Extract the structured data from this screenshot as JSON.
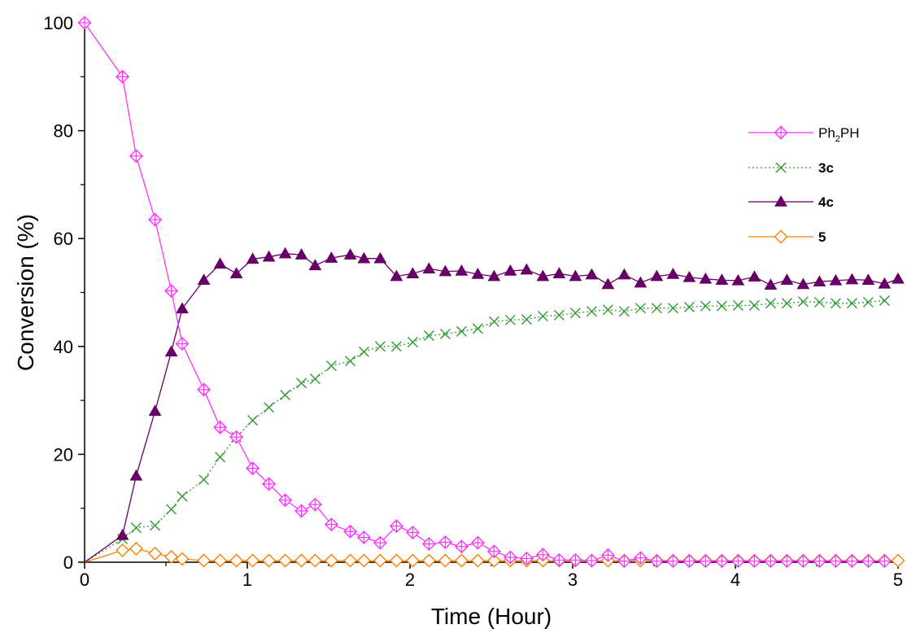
{
  "chart_data": {
    "type": "line",
    "xlabel": "Time (Hour)",
    "ylabel": "Conversion (%)",
    "xlim": [
      0,
      5
    ],
    "ylim": [
      0,
      100
    ],
    "x_ticks": [
      "0",
      "1",
      "2",
      "3",
      "4",
      "5"
    ],
    "y_ticks": [
      "0",
      "20",
      "40",
      "60",
      "80",
      "100"
    ],
    "grid": false,
    "legend_position": "top-right",
    "series": [
      {
        "name": "Ph2PH",
        "name_main": "Ph",
        "name_sub": "2",
        "name_rest": "PH",
        "name_bold": false,
        "color": "#ff33ff",
        "marker": "diamond-cross",
        "line": "solid",
        "x": [
          0,
          0.233,
          0.317,
          0.433,
          0.533,
          0.6,
          0.733,
          0.833,
          0.933,
          1.033,
          1.133,
          1.233,
          1.333,
          1.417,
          1.517,
          1.633,
          1.717,
          1.817,
          1.917,
          2.017,
          2.117,
          2.217,
          2.317,
          2.417,
          2.517,
          2.617,
          2.717,
          2.817,
          2.917,
          3.017,
          3.117,
          3.217,
          3.317,
          3.417,
          3.517,
          3.617,
          3.717,
          3.817,
          3.917,
          4.017,
          4.117,
          4.217,
          4.317,
          4.417,
          4.517,
          4.617,
          4.717,
          4.817,
          4.917
        ],
        "y": [
          100,
          90,
          75.3,
          63.5,
          50.3,
          40.5,
          32,
          25,
          23.2,
          17.4,
          14.5,
          11.5,
          9.5,
          10.7,
          7,
          5.7,
          4.6,
          3.6,
          6.7,
          5.5,
          3.4,
          3.7,
          2.9,
          3.6,
          2,
          0.9,
          0.7,
          1.4,
          0.4,
          0.4,
          0.3,
          1.3,
          0.2,
          0.8,
          0.2,
          0.2,
          0.2,
          0.2,
          0.2,
          0.2,
          0.2,
          0.2,
          0.2,
          0.2,
          0.2,
          0.2,
          0.2,
          0.2,
          0.2
        ]
      },
      {
        "name": "3c",
        "name_bold": true,
        "color": "#339933",
        "marker": "x",
        "line": "dotted",
        "x": [
          0,
          0.233,
          0.317,
          0.433,
          0.533,
          0.6,
          0.733,
          0.833,
          0.933,
          1.033,
          1.133,
          1.233,
          1.333,
          1.417,
          1.517,
          1.633,
          1.717,
          1.817,
          1.917,
          2.017,
          2.117,
          2.217,
          2.317,
          2.417,
          2.517,
          2.617,
          2.717,
          2.817,
          2.917,
          3.017,
          3.117,
          3.217,
          3.317,
          3.417,
          3.517,
          3.617,
          3.717,
          3.817,
          3.917,
          4.017,
          4.117,
          4.217,
          4.317,
          4.417,
          4.517,
          4.617,
          4.717,
          4.817,
          4.917
        ],
        "y": [
          0,
          4.3,
          6.4,
          6.8,
          9.8,
          12.2,
          15.3,
          19.5,
          23.2,
          26.3,
          28.7,
          31,
          33.2,
          34,
          36.4,
          37.3,
          39,
          40,
          40,
          40.8,
          42,
          42.3,
          42.8,
          43.3,
          44.6,
          44.9,
          45,
          45.6,
          45.8,
          46.2,
          46.5,
          46.8,
          46.5,
          47.1,
          47.1,
          47.1,
          47.3,
          47.5,
          47.5,
          47.6,
          47.6,
          48,
          48,
          48.3,
          48.2,
          48,
          48,
          48.2,
          48.5
        ]
      },
      {
        "name": "4c",
        "name_bold": true,
        "color": "#660066",
        "marker": "triangle",
        "line": "solid",
        "x": [
          0,
          0.233,
          0.317,
          0.433,
          0.533,
          0.6,
          0.733,
          0.833,
          0.933,
          1.033,
          1.133,
          1.233,
          1.333,
          1.417,
          1.517,
          1.633,
          1.717,
          1.817,
          1.917,
          2.017,
          2.117,
          2.217,
          2.317,
          2.417,
          2.517,
          2.617,
          2.717,
          2.817,
          2.917,
          3.017,
          3.117,
          3.217,
          3.317,
          3.417,
          3.517,
          3.617,
          3.717,
          3.817,
          3.917,
          4.017,
          4.117,
          4.217,
          4.317,
          4.417,
          4.517,
          4.617,
          4.717,
          4.817,
          4.917,
          5.0
        ],
        "y": [
          0,
          5,
          16,
          28,
          39,
          47,
          52.3,
          55.3,
          53.5,
          56.2,
          56.6,
          57.2,
          57,
          55,
          56.4,
          57,
          56.3,
          56.3,
          53,
          53.5,
          54.4,
          53.9,
          54,
          53.4,
          53,
          54,
          54.2,
          53,
          53.5,
          53,
          53.3,
          51.5,
          53.3,
          51.8,
          53,
          53.4,
          52.8,
          52.5,
          52.3,
          52.2,
          52.9,
          51.4,
          52.3,
          51.5,
          52,
          52.2,
          52.4,
          52.3,
          51.6,
          52.5
        ]
      },
      {
        "name": "5",
        "name_bold": true,
        "color": "#ff8000",
        "marker": "diamond",
        "line": "solid",
        "x": [
          0,
          0.233,
          0.317,
          0.433,
          0.533,
          0.6,
          0.733,
          0.833,
          0.933,
          1.033,
          1.133,
          1.233,
          1.333,
          1.417,
          1.517,
          1.633,
          1.717,
          1.817,
          1.917,
          2.017,
          2.117,
          2.217,
          2.317,
          2.417,
          2.517,
          2.617,
          2.717,
          2.817,
          2.917,
          3.017,
          3.117,
          3.217,
          3.317,
          3.417,
          3.517,
          3.617,
          3.717,
          3.817,
          3.917,
          4.017,
          4.117,
          4.217,
          4.317,
          4.417,
          4.517,
          4.617,
          4.717,
          4.817,
          4.917,
          5.0
        ],
        "y": [
          0,
          2.2,
          2.5,
          1.6,
          1,
          0.6,
          0.3,
          0.3,
          0.3,
          0.3,
          0.3,
          0.3,
          0.3,
          0.3,
          0.3,
          0.3,
          0.3,
          0.3,
          0.3,
          0.3,
          0.3,
          0.3,
          0.3,
          0.3,
          0.3,
          0.3,
          0.3,
          0.3,
          0.3,
          0.3,
          0.3,
          0.3,
          0.3,
          0.3,
          0.3,
          0.3,
          0.3,
          0.3,
          0.3,
          0.3,
          0.3,
          0.3,
          0.3,
          0.3,
          0.3,
          0.3,
          0.3,
          0.3,
          0.3,
          0.3
        ]
      }
    ]
  }
}
